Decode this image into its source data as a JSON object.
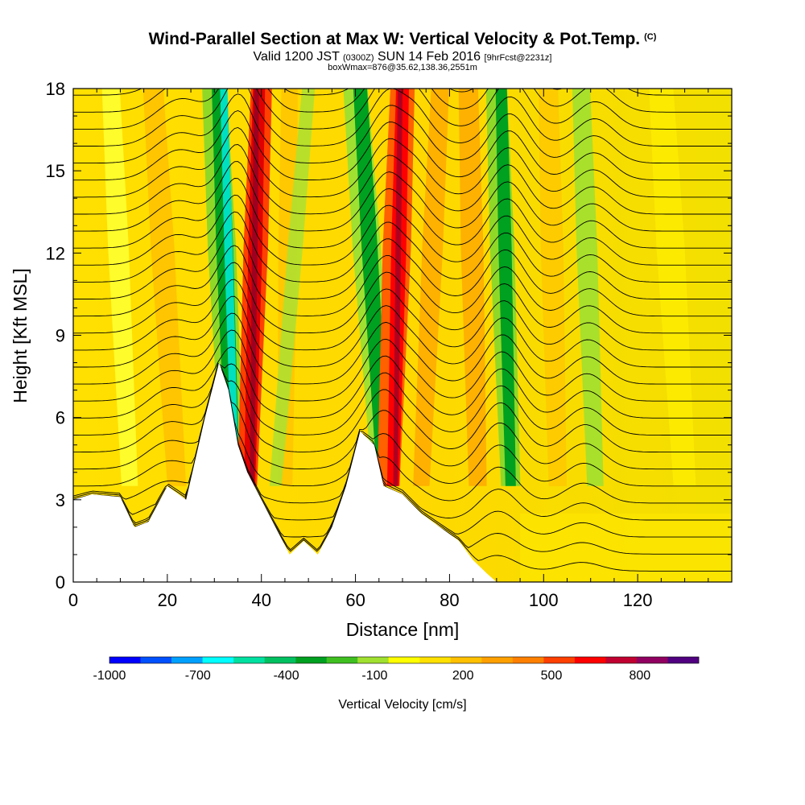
{
  "header": {
    "title": "Wind-Parallel Section at Max W: Vertical Velocity & Pot.Temp.",
    "copyright": "(C)",
    "valid_prefix": "Valid 1200 JST",
    "valid_utc": "(0300Z)",
    "valid_date": "SUN 14 Feb 2016",
    "forecast": "[9hrFcst@2231z]",
    "box_info": "boxWmax=876@35.62,138.36,2551m"
  },
  "chart_data": {
    "type": "heatmap",
    "title": "Wind-Parallel Section at Max W: Vertical Velocity & Pot.Temp.",
    "xlabel": "Distance [nm]",
    "ylabel": "Height [Kft MSL]",
    "xlim": [
      0,
      140
    ],
    "ylim": [
      0,
      18
    ],
    "x_ticks": [
      "0",
      "20",
      "40",
      "60",
      "80",
      "100",
      "120"
    ],
    "y_ticks": [
      "0",
      "3",
      "6",
      "9",
      "12",
      "15",
      "18"
    ],
    "colorbar": {
      "title": "Vertical Velocity [cm/s]",
      "labels": [
        "-1000",
        "-700",
        "-400",
        "-100",
        "200",
        "500",
        "800"
      ],
      "levels": [
        -1000,
        -900,
        -800,
        -700,
        -600,
        -500,
        -400,
        -300,
        -200,
        -100,
        0,
        100,
        200,
        300,
        400,
        500,
        600,
        700,
        800,
        900
      ],
      "colors": [
        "#0000ff",
        "#0050ff",
        "#00a0ff",
        "#00ffff",
        "#00e0a0",
        "#00c060",
        "#00a020",
        "#40c020",
        "#a0e030",
        "#ffff00",
        "#ffe000",
        "#ffc000",
        "#ffa000",
        "#ff8000",
        "#ff4000",
        "#ff0000",
        "#c00030",
        "#900060",
        "#500080"
      ]
    },
    "terrain": [
      [
        0,
        3
      ],
      [
        4,
        3.2
      ],
      [
        10,
        3.1
      ],
      [
        13,
        2
      ],
      [
        16,
        2.2
      ],
      [
        20,
        3.5
      ],
      [
        24,
        3
      ],
      [
        28,
        6
      ],
      [
        31,
        8
      ],
      [
        33,
        7
      ],
      [
        35,
        5
      ],
      [
        37,
        4
      ],
      [
        40,
        3
      ],
      [
        43,
        2
      ],
      [
        46,
        1
      ],
      [
        49,
        1.5
      ],
      [
        52,
        1
      ],
      [
        55,
        2
      ],
      [
        58,
        3.5
      ],
      [
        61,
        5.5
      ],
      [
        64,
        5
      ],
      [
        66,
        3.5
      ],
      [
        70,
        3.2
      ],
      [
        74,
        2.5
      ],
      [
        78,
        2
      ],
      [
        82,
        1.5
      ],
      [
        85,
        0.8
      ],
      [
        88,
        0.3
      ],
      [
        90,
        0
      ]
    ],
    "max_w": {
      "value": 876,
      "lat": 35.62,
      "lon": 138.36,
      "height_m": 2551
    }
  }
}
